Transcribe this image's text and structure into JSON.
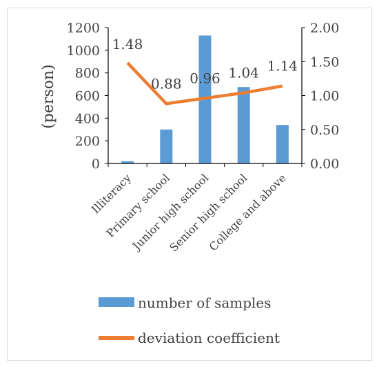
{
  "chart_data": {
    "type": "bar+line",
    "categories": [
      "Illiteracy",
      "Primary school",
      "Junior high school",
      "Senior high school",
      "College and above"
    ],
    "series": [
      {
        "name": "number of samples",
        "type": "bar",
        "axis": "left",
        "color": "#5b9bd5",
        "values": [
          20,
          300,
          1130,
          675,
          340
        ]
      },
      {
        "name": "deviation coefficient",
        "type": "line",
        "axis": "right",
        "color": "#ed7d31",
        "values": [
          1.48,
          0.88,
          0.96,
          1.04,
          1.14
        ],
        "labels": [
          "1.48",
          "0.88",
          "0.96",
          "1.04",
          "1.14"
        ]
      }
    ],
    "ylabel": "(person)",
    "ylim": [
      0,
      1200
    ],
    "yticks": [
      "0",
      "200",
      "400",
      "600",
      "800",
      "1000",
      "1200"
    ],
    "y2lim": [
      0,
      2
    ],
    "y2ticks": [
      "0.00",
      "0.50",
      "1.00",
      "1.50",
      "2.00"
    ],
    "legend_position": "bottom"
  }
}
